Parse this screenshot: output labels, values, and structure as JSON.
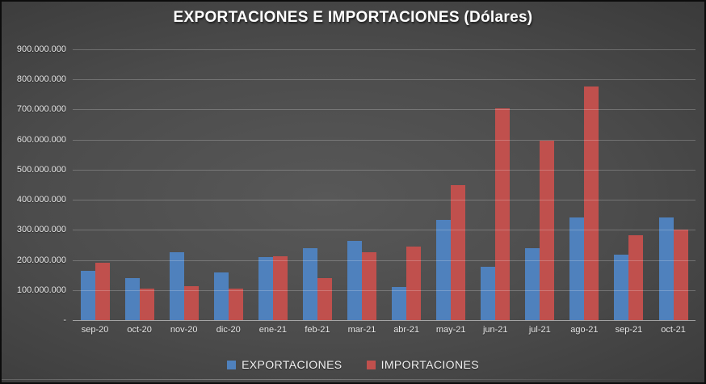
{
  "title": "EXPORTACIONES E IMPORTACIONES (Dólares)",
  "colors": {
    "export_series": "#4F81BD",
    "import_series": "#C0504D",
    "background_center": "#585858",
    "background_edge": "#272727",
    "gridline": "rgba(255,255,255,0.22)",
    "axis_line": "rgba(255,255,255,0.5)",
    "text": "#EAEAEA"
  },
  "y_axis": {
    "ticks": [
      {
        "label": "900.000.000",
        "value": 900000000
      },
      {
        "label": "800.000.000",
        "value": 800000000
      },
      {
        "label": "700.000.000",
        "value": 700000000
      },
      {
        "label": "600.000.000",
        "value": 600000000
      },
      {
        "label": "500.000.000",
        "value": 500000000
      },
      {
        "label": "400.000.000",
        "value": 400000000
      },
      {
        "label": "300.000.000",
        "value": 300000000
      },
      {
        "label": "200.000.000",
        "value": 200000000
      },
      {
        "label": "100.000.000",
        "value": 100000000
      },
      {
        "label": "-",
        "value": 0
      }
    ]
  },
  "legend": {
    "items": [
      {
        "label": "EXPORTACIONES",
        "color": "#4F81BD"
      },
      {
        "label": "IMPORTACIONES",
        "color": "#C0504D"
      }
    ]
  },
  "chart_data": {
    "type": "bar",
    "title": "EXPORTACIONES E IMPORTACIONES (Dólares)",
    "categories": [
      "sep-20",
      "oct-20",
      "nov-20",
      "dic-20",
      "ene-21",
      "feb-21",
      "mar-21",
      "abr-21",
      "may-21",
      "jun-21",
      "jul-21",
      "ago-21",
      "sep-21",
      "oct-21"
    ],
    "series": [
      {
        "name": "EXPORTACIONES",
        "color": "#4F81BD",
        "values": [
          165000000,
          140000000,
          225000000,
          158000000,
          210000000,
          240000000,
          263000000,
          110000000,
          334000000,
          178000000,
          238000000,
          340000000,
          218000000,
          340000000
        ]
      },
      {
        "name": "IMPORTACIONES",
        "color": "#C0504D",
        "values": [
          190000000,
          104000000,
          113000000,
          104000000,
          212000000,
          139000000,
          227000000,
          244000000,
          448000000,
          705000000,
          596000000,
          776000000,
          281000000,
          300000000
        ]
      }
    ],
    "xlabel": "",
    "ylabel": "",
    "ylim": [
      0,
      900000000
    ],
    "grid": true,
    "legend_position": "bottom"
  }
}
